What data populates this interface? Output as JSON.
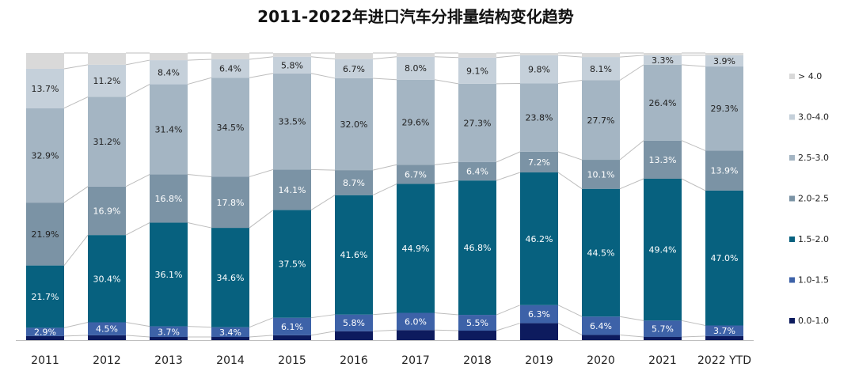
{
  "chart_data": {
    "type": "bar",
    "stacked": true,
    "normalized": true,
    "title": "2011-2022年进口汽车分排量结构变化趋势",
    "xlabel": "",
    "ylabel": "",
    "ylim": [
      0,
      100
    ],
    "categories": [
      "2011",
      "2012",
      "2013",
      "2014",
      "2015",
      "2016",
      "2017",
      "2018",
      "2019",
      "2020",
      "2021",
      "2022 YTD"
    ],
    "legend_position": "right",
    "series": [
      {
        "name": "0.0-1.0",
        "color": "#0d1b5e",
        "values": [
          1.4,
          1.7,
          1.1,
          1.1,
          1.7,
          3.1,
          3.5,
          3.3,
          5.9,
          1.8,
          1.1,
          1.4
        ],
        "labels": [
          "",
          "",
          "",
          "",
          "",
          "",
          "",
          "",
          "",
          "",
          "",
          ""
        ]
      },
      {
        "name": "1.0-1.5",
        "color": "#3d62a8",
        "values": [
          2.9,
          4.5,
          3.7,
          3.4,
          6.1,
          5.8,
          6.0,
          5.5,
          6.3,
          6.4,
          5.7,
          3.7
        ],
        "labels": [
          "2.9%",
          "4.5%",
          "3.7%",
          "3.4%",
          "6.1%",
          "5.8%",
          "6.0%",
          "5.5%",
          "6.3%",
          "6.4%",
          "5.7%",
          "3.7%"
        ]
      },
      {
        "name": "1.5-2.0",
        "color": "#07617f",
        "values": [
          21.7,
          30.4,
          36.1,
          34.6,
          37.5,
          41.6,
          44.9,
          46.8,
          46.2,
          44.5,
          49.4,
          47.0
        ],
        "labels": [
          "21.7%",
          "30.4%",
          "36.1%",
          "34.6%",
          "37.5%",
          "41.6%",
          "44.9%",
          "46.8%",
          "46.2%",
          "44.5%",
          "49.4%",
          "47.0%"
        ]
      },
      {
        "name": "2.0-2.5",
        "color": "#7b93a5",
        "values": [
          21.9,
          16.9,
          16.8,
          17.8,
          14.1,
          8.7,
          6.7,
          6.4,
          7.2,
          10.1,
          13.3,
          13.9
        ],
        "labels": [
          "21.9%",
          "16.9%",
          "16.8%",
          "17.8%",
          "14.1%",
          "8.7%",
          "6.7%",
          "6.4%",
          "7.2%",
          "10.1%",
          "13.3%",
          "13.9%"
        ]
      },
      {
        "name": "2.5-3.0",
        "color": "#a4b5c3",
        "values": [
          32.9,
          31.2,
          31.4,
          34.5,
          33.5,
          32.0,
          29.6,
          27.3,
          23.8,
          27.7,
          26.4,
          29.3
        ],
        "labels": [
          "32.9%",
          "31.2%",
          "31.4%",
          "34.5%",
          "33.5%",
          "32.0%",
          "29.6%",
          "27.3%",
          "23.8%",
          "27.7%",
          "26.4%",
          "29.3%"
        ]
      },
      {
        "name": "3.0-4.0",
        "color": "#c5d0da",
        "values": [
          13.7,
          11.2,
          8.4,
          6.4,
          5.8,
          6.7,
          8.0,
          9.1,
          9.8,
          8.1,
          3.3,
          3.9
        ],
        "labels": [
          "13.7%",
          "11.2%",
          "8.4%",
          "6.4%",
          "5.8%",
          "6.7%",
          "8.0%",
          "9.1%",
          "9.8%",
          "8.1%",
          "3.3%",
          "3.9%"
        ]
      },
      {
        "name": "> 4.0",
        "color": "#d9d9d9",
        "values": [
          5.5,
          4.1,
          2.5,
          2.2,
          1.3,
          2.1,
          1.3,
          1.6,
          0.8,
          1.4,
          0.8,
          0.8
        ],
        "labels": [
          "",
          "",
          "",
          "",
          "",
          "",
          "",
          "",
          "",
          "",
          "",
          ""
        ]
      }
    ]
  }
}
